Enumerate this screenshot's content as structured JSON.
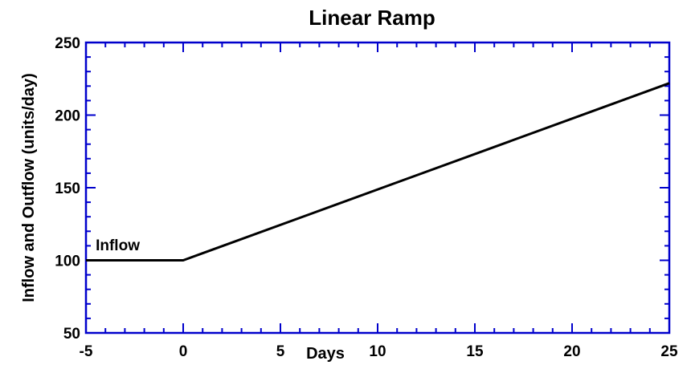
{
  "chart_data": {
    "type": "line",
    "title": "Linear Ramp",
    "xlabel": "Days",
    "ylabel": "Inflow and Outflow (units/day)",
    "xlim": [
      -5,
      25
    ],
    "ylim": [
      50,
      250
    ],
    "xticks": [
      -5,
      0,
      5,
      10,
      15,
      20,
      25
    ],
    "yticks": [
      50,
      100,
      150,
      200,
      250
    ],
    "grid": false,
    "axis_color": "#0000cc",
    "line_color": "#000000",
    "annotations": [
      {
        "text": "Inflow",
        "x": -4.5,
        "y": 107
      }
    ],
    "series": [
      {
        "x": [
          -5,
          0,
          25
        ],
        "y": [
          100,
          100,
          222
        ]
      }
    ]
  }
}
